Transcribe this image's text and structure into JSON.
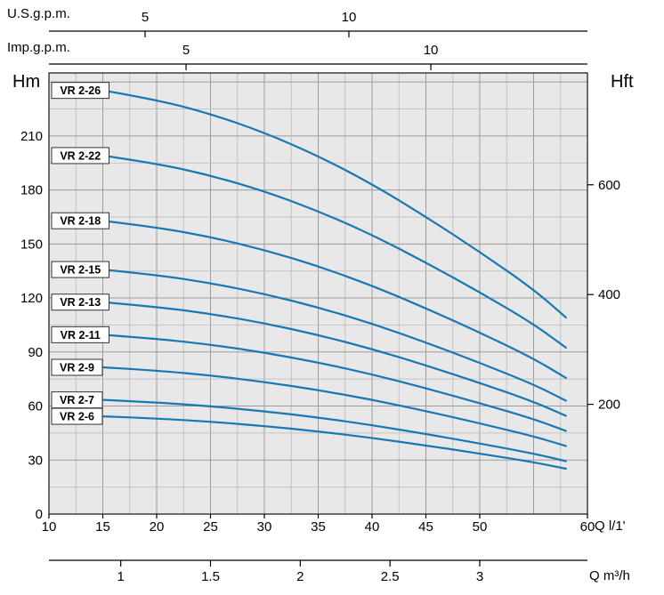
{
  "chart_data": {
    "type": "line",
    "title": "",
    "description": "Pump performance curves (head vs. flow) for VR 2 series multistage pumps",
    "grid": true,
    "legend_position": "none",
    "colors": {
      "curve": "#1878b4",
      "plot_bg": "#e8e8e8",
      "grid_minor": "#c3c3c3",
      "grid_major": "#9c9c9c",
      "axis": "#000000",
      "label_box_bg": "#ffffff",
      "label_box_border": "#333333"
    },
    "x_axis": {
      "label": "Q l/1'",
      "unit": "l/min",
      "range": [
        10,
        60
      ],
      "ticks": [
        10,
        15,
        20,
        25,
        30,
        35,
        40,
        45,
        50,
        60
      ],
      "minor_step": 2.5,
      "major_step": 5
    },
    "y_axis_left": {
      "label": "Hm",
      "unit": "m",
      "range": [
        0,
        245
      ],
      "ticks": [
        0,
        30,
        60,
        90,
        120,
        150,
        180,
        210
      ],
      "minor_step": 15,
      "major_step": 30
    },
    "y_axis_right": {
      "label": "Hft",
      "unit": "ft",
      "ticks": [
        200,
        400,
        600
      ],
      "m_per_ft": 0.3048
    },
    "top_axis_us": {
      "label": "U.S.g.p.m.",
      "ticks": [
        5,
        10
      ],
      "l_min_per_unit": 3.785
    },
    "top_axis_imp": {
      "label": "Imp.g.p.m.",
      "ticks": [
        5,
        10
      ],
      "l_min_per_unit": 4.546
    },
    "bottom_axis_m3h": {
      "label": "Q m³/h",
      "ticks": [
        1,
        1.5,
        2,
        2.5,
        3
      ],
      "l_min_per_unit": 16.667
    },
    "q_l_min": [
      15,
      20,
      25,
      30,
      35,
      40,
      45,
      50,
      55,
      58
    ],
    "series": [
      {
        "name": "VR 2-26",
        "head_m": [
          235.3,
          230.1,
          222.3,
          211.9,
          198.9,
          183.3,
          165.1,
          145.6,
          124.8,
          109.2
        ]
      },
      {
        "name": "VR 2-22",
        "head_m": [
          199.1,
          194.7,
          188.1,
          179.3,
          168.3,
          155.1,
          139.7,
          123.2,
          105.6,
          92.4
        ]
      },
      {
        "name": "VR 2-18",
        "head_m": [
          162.9,
          159.3,
          153.9,
          146.7,
          137.7,
          126.9,
          114.3,
          100.8,
          86.4,
          75.6
        ]
      },
      {
        "name": "VR 2-15",
        "head_m": [
          135.8,
          132.8,
          128.3,
          122.3,
          114.8,
          105.8,
          95.3,
          84.0,
          72.0,
          63.0
        ]
      },
      {
        "name": "VR 2-13",
        "head_m": [
          117.7,
          115.1,
          111.2,
          106.0,
          99.5,
          91.7,
          82.6,
          72.8,
          62.4,
          54.6
        ]
      },
      {
        "name": "VR 2-11",
        "head_m": [
          99.6,
          97.4,
          94.1,
          89.7,
          84.2,
          77.6,
          69.9,
          61.6,
          52.8,
          46.2
        ]
      },
      {
        "name": "VR 2-9",
        "head_m": [
          81.5,
          79.7,
          77.0,
          73.4,
          68.9,
          63.5,
          57.2,
          50.4,
          43.2,
          37.8
        ]
      },
      {
        "name": "VR 2-7",
        "head_m": [
          63.4,
          62.0,
          59.9,
          57.1,
          53.6,
          49.4,
          44.5,
          39.2,
          33.6,
          29.4
        ]
      },
      {
        "name": "VR 2-6",
        "head_m": [
          54.3,
          53.1,
          51.3,
          48.9,
          45.9,
          42.3,
          38.1,
          33.6,
          28.8,
          25.2
        ]
      }
    ]
  }
}
